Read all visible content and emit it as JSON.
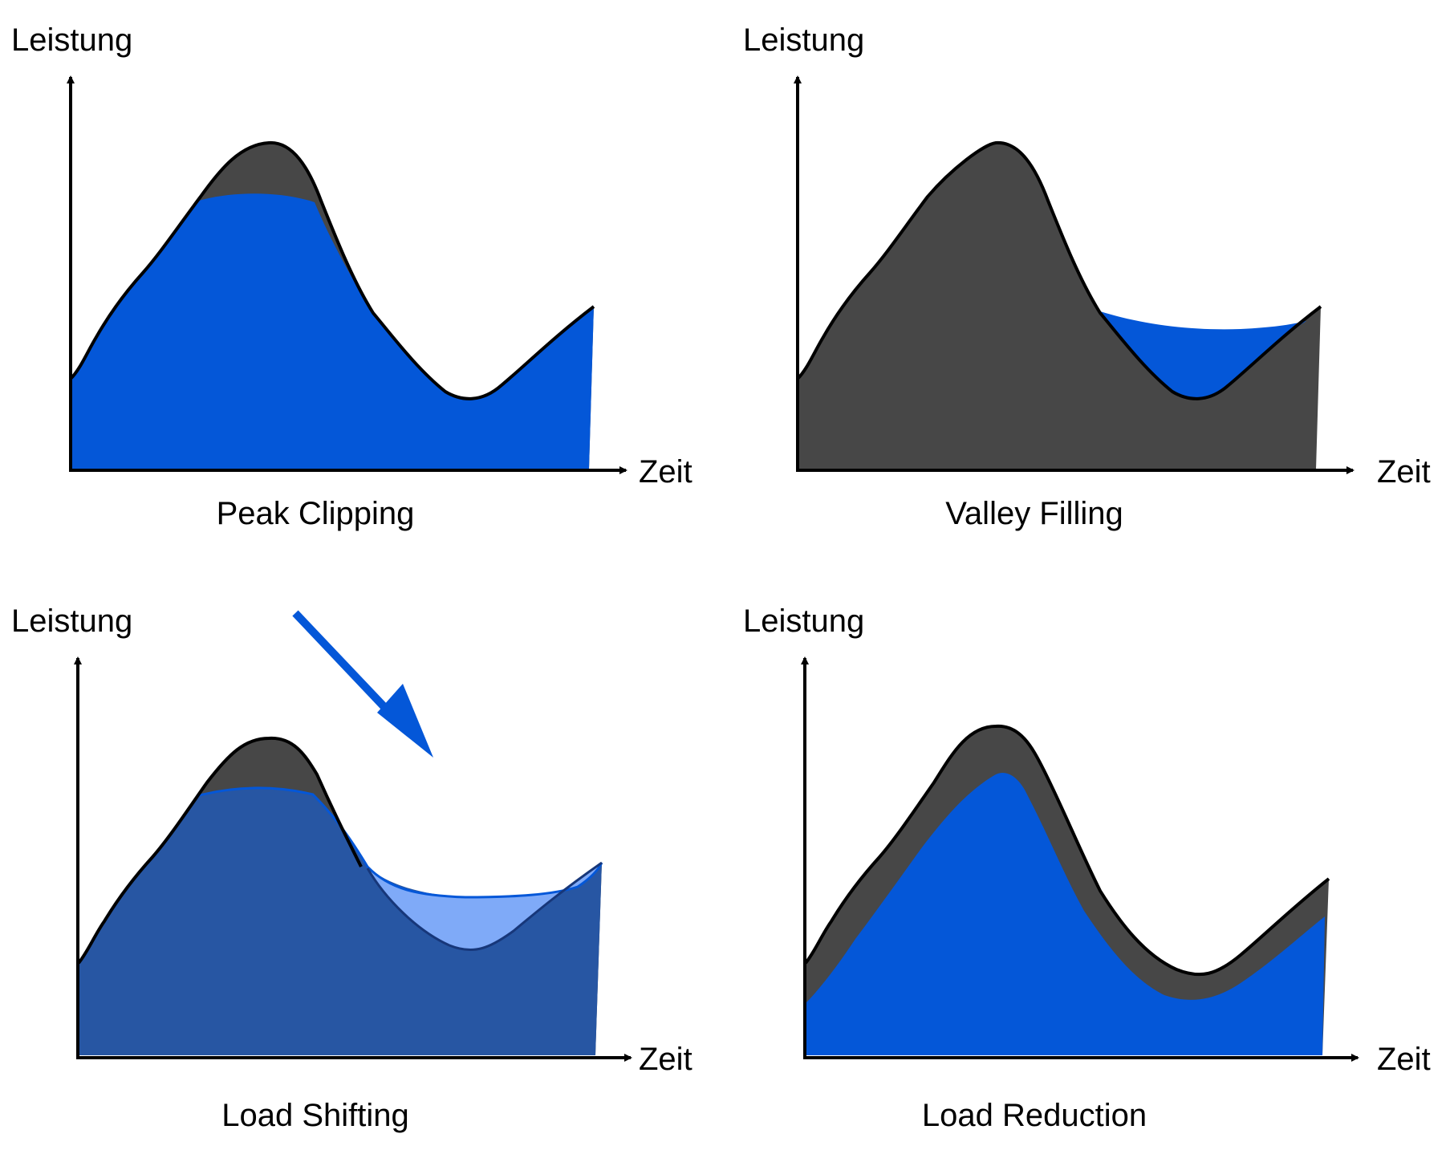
{
  "colors": {
    "dark_load": "#474747",
    "blue": "#0457d8",
    "shifted_blue": "#2756a3",
    "light_blue": "#7faaf8",
    "outline": "#000000"
  },
  "panels": [
    {
      "id": "peak-clipping",
      "ylabel": "Leistung",
      "xlabel": "Zeit",
      "caption": "Peak Clipping"
    },
    {
      "id": "valley-filling",
      "ylabel": "Leistung",
      "xlabel": "Zeit",
      "caption": "Valley Filling"
    },
    {
      "id": "load-shifting",
      "ylabel": "Leistung",
      "xlabel": "Zeit",
      "caption": "Load Shifting"
    },
    {
      "id": "load-reduction",
      "ylabel": "Leistung",
      "xlabel": "Zeit",
      "caption": "Load Reduction"
    }
  ]
}
